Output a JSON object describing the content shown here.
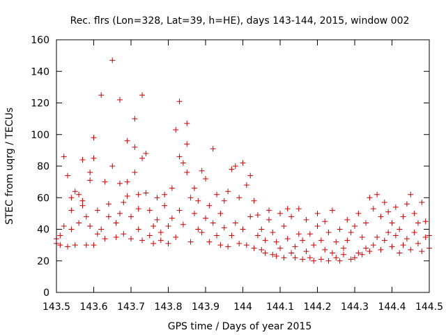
{
  "chart_data": {
    "type": "scatter",
    "title": "Rec. flrs (Lon=328, Lat=39, h=HE), days 143-144, 2015, window 002",
    "xlabel": "GPS time / Days of year 2015",
    "ylabel": "STEC from uqrg / TECUs",
    "xlim": [
      143.5,
      144.5
    ],
    "ylim": [
      0,
      160
    ],
    "x_ticks": [
      143.5,
      143.6,
      143.7,
      143.8,
      143.9,
      144.0,
      144.1,
      144.2,
      144.3,
      144.4,
      144.5
    ],
    "x_tick_labels": [
      "143.5",
      "143.6",
      "143.7",
      "143.8",
      "143.9",
      "144",
      "144.1",
      "144.2",
      "144.3",
      "144.4",
      "144.5"
    ],
    "y_ticks": [
      0,
      20,
      40,
      60,
      80,
      100,
      120,
      140,
      160
    ],
    "y_tick_labels": [
      "0",
      "20",
      "40",
      "60",
      "80",
      "100",
      "120",
      "140",
      "160"
    ],
    "grid": false,
    "marker": "+",
    "marker_color": "#cc0000",
    "points": [
      [
        143.5,
        34
      ],
      [
        143.5,
        31
      ],
      [
        143.51,
        30
      ],
      [
        143.51,
        36
      ],
      [
        143.52,
        42
      ],
      [
        143.52,
        86
      ],
      [
        143.53,
        29
      ],
      [
        143.53,
        74
      ],
      [
        143.54,
        60
      ],
      [
        143.54,
        40
      ],
      [
        143.54,
        52
      ],
      [
        143.55,
        30
      ],
      [
        143.55,
        64
      ],
      [
        143.56,
        62
      ],
      [
        143.56,
        44
      ],
      [
        143.57,
        84
      ],
      [
        143.57,
        58
      ],
      [
        143.57,
        55
      ],
      [
        143.58,
        30
      ],
      [
        143.58,
        48
      ],
      [
        143.59,
        76
      ],
      [
        143.59,
        42
      ],
      [
        143.59,
        71
      ],
      [
        143.6,
        30
      ],
      [
        143.6,
        85
      ],
      [
        143.6,
        98
      ],
      [
        143.61,
        37
      ],
      [
        143.61,
        52
      ],
      [
        143.62,
        125
      ],
      [
        143.62,
        40
      ],
      [
        143.63,
        70
      ],
      [
        143.63,
        34
      ],
      [
        143.64,
        48
      ],
      [
        143.64,
        56
      ],
      [
        143.65,
        147
      ],
      [
        143.65,
        80
      ],
      [
        143.66,
        44
      ],
      [
        143.66,
        35
      ],
      [
        143.67,
        122
      ],
      [
        143.67,
        69
      ],
      [
        143.67,
        50
      ],
      [
        143.68,
        37
      ],
      [
        143.68,
        57
      ],
      [
        143.69,
        96
      ],
      [
        143.69,
        70
      ],
      [
        143.69,
        61
      ],
      [
        143.7,
        34
      ],
      [
        143.7,
        48
      ],
      [
        143.71,
        110
      ],
      [
        143.71,
        92
      ],
      [
        143.71,
        76
      ],
      [
        143.72,
        40
      ],
      [
        143.72,
        62
      ],
      [
        143.72,
        53
      ],
      [
        143.73,
        125
      ],
      [
        143.73,
        85
      ],
      [
        143.73,
        33
      ],
      [
        143.74,
        63
      ],
      [
        143.74,
        88
      ],
      [
        143.75,
        36
      ],
      [
        143.75,
        52
      ],
      [
        143.76,
        31
      ],
      [
        143.76,
        42
      ],
      [
        143.77,
        60
      ],
      [
        143.77,
        46
      ],
      [
        143.78,
        33
      ],
      [
        143.78,
        38
      ],
      [
        143.79,
        55
      ],
      [
        143.79,
        62
      ],
      [
        143.8,
        31
      ],
      [
        143.8,
        42
      ],
      [
        143.81,
        47
      ],
      [
        143.81,
        66
      ],
      [
        143.82,
        103
      ],
      [
        143.82,
        35
      ],
      [
        143.83,
        121
      ],
      [
        143.83,
        86
      ],
      [
        143.83,
        52
      ],
      [
        143.84,
        82
      ],
      [
        143.84,
        43
      ],
      [
        143.85,
        107
      ],
      [
        143.85,
        94
      ],
      [
        143.85,
        76
      ],
      [
        143.86,
        32
      ],
      [
        143.86,
        60
      ],
      [
        143.87,
        66
      ],
      [
        143.87,
        50
      ],
      [
        143.88,
        40
      ],
      [
        143.88,
        58
      ],
      [
        143.89,
        38
      ],
      [
        143.89,
        77
      ],
      [
        143.9,
        72
      ],
      [
        143.9,
        47
      ],
      [
        143.91,
        32
      ],
      [
        143.91,
        55
      ],
      [
        143.92,
        91
      ],
      [
        143.92,
        44
      ],
      [
        143.93,
        36
      ],
      [
        143.93,
        62
      ],
      [
        143.94,
        30
      ],
      [
        143.94,
        50
      ],
      [
        143.95,
        41
      ],
      [
        143.95,
        58
      ],
      [
        143.96,
        29
      ],
      [
        143.96,
        64
      ],
      [
        143.97,
        36
      ],
      [
        143.97,
        78
      ],
      [
        143.98,
        80
      ],
      [
        143.98,
        44
      ],
      [
        143.99,
        31
      ],
      [
        143.99,
        60
      ],
      [
        144.0,
        82
      ],
      [
        144.0,
        40
      ],
      [
        144.01,
        30
      ],
      [
        144.01,
        68
      ],
      [
        144.02,
        48
      ],
      [
        144.02,
        74
      ],
      [
        144.03,
        28
      ],
      [
        144.03,
        58
      ],
      [
        144.04,
        36
      ],
      [
        144.04,
        49
      ],
      [
        144.05,
        27
      ],
      [
        144.05,
        40
      ],
      [
        144.06,
        33
      ],
      [
        144.06,
        25
      ],
      [
        144.07,
        46
      ],
      [
        144.07,
        52
      ],
      [
        144.08,
        24
      ],
      [
        144.08,
        38
      ],
      [
        144.09,
        23
      ],
      [
        144.09,
        32
      ],
      [
        144.1,
        50
      ],
      [
        144.1,
        28
      ],
      [
        144.11,
        22
      ],
      [
        144.11,
        42
      ],
      [
        144.12,
        53
      ],
      [
        144.12,
        34
      ],
      [
        144.13,
        25
      ],
      [
        144.13,
        48
      ],
      [
        144.14,
        22
      ],
      [
        144.14,
        29
      ],
      [
        144.15,
        37
      ],
      [
        144.15,
        53
      ],
      [
        144.16,
        21
      ],
      [
        144.16,
        33
      ],
      [
        144.17,
        46
      ],
      [
        144.17,
        26
      ],
      [
        144.18,
        22
      ],
      [
        144.18,
        37
      ],
      [
        144.19,
        20
      ],
      [
        144.19,
        30
      ],
      [
        144.2,
        42
      ],
      [
        144.2,
        50
      ],
      [
        144.21,
        21
      ],
      [
        144.21,
        33
      ],
      [
        144.22,
        27
      ],
      [
        144.22,
        45
      ],
      [
        144.23,
        20
      ],
      [
        144.23,
        38
      ],
      [
        144.24,
        25
      ],
      [
        144.24,
        52
      ],
      [
        144.25,
        22
      ],
      [
        144.25,
        32
      ],
      [
        144.26,
        20
      ],
      [
        144.26,
        40
      ],
      [
        144.27,
        28
      ],
      [
        144.27,
        24
      ],
      [
        144.28,
        33
      ],
      [
        144.28,
        46
      ],
      [
        144.29,
        21
      ],
      [
        144.29,
        38
      ],
      [
        144.3,
        22
      ],
      [
        144.3,
        42
      ],
      [
        144.31,
        25
      ],
      [
        144.31,
        50
      ],
      [
        144.32,
        24
      ],
      [
        144.32,
        35
      ],
      [
        144.33,
        28
      ],
      [
        144.33,
        44
      ],
      [
        144.34,
        26
      ],
      [
        144.34,
        60
      ],
      [
        144.35,
        30
      ],
      [
        144.35,
        53
      ],
      [
        144.36,
        35
      ],
      [
        144.36,
        62
      ],
      [
        144.37,
        27
      ],
      [
        144.37,
        48
      ],
      [
        144.38,
        33
      ],
      [
        144.38,
        57
      ],
      [
        144.39,
        38
      ],
      [
        144.39,
        51
      ],
      [
        144.4,
        29
      ],
      [
        144.4,
        44
      ],
      [
        144.41,
        36
      ],
      [
        144.41,
        54
      ],
      [
        144.42,
        25
      ],
      [
        144.42,
        40
      ],
      [
        144.43,
        30
      ],
      [
        144.43,
        48
      ],
      [
        144.44,
        34
      ],
      [
        144.44,
        56
      ],
      [
        144.45,
        27
      ],
      [
        144.45,
        62
      ],
      [
        144.46,
        38
      ],
      [
        144.46,
        50
      ],
      [
        144.47,
        31
      ],
      [
        144.47,
        44
      ],
      [
        144.48,
        26
      ],
      [
        144.48,
        57
      ],
      [
        144.49,
        35
      ],
      [
        144.49,
        45
      ],
      [
        144.5,
        28
      ],
      [
        144.5,
        36
      ]
    ]
  }
}
